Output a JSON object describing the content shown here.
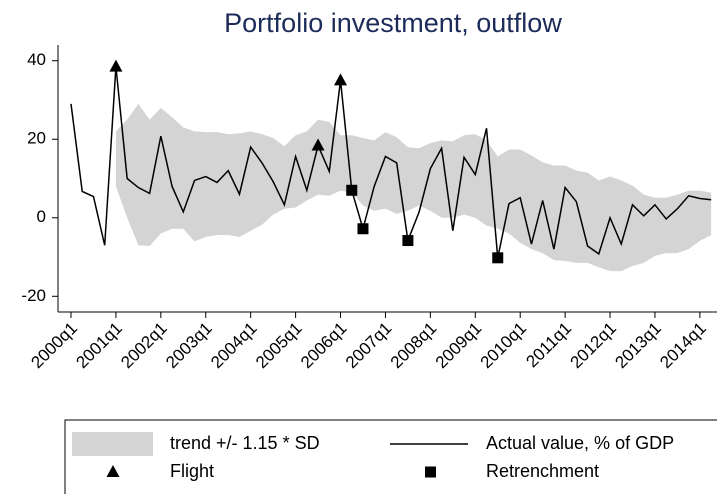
{
  "chart_data": {
    "type": "line",
    "title": "Portfolio investment, outflow",
    "categories": [
      "2000q1",
      null,
      null,
      null,
      "2001q1",
      null,
      null,
      null,
      "2002q1",
      null,
      null,
      null,
      "2003q1",
      null,
      null,
      null,
      "2004q1",
      null,
      null,
      null,
      "2005q1",
      null,
      null,
      null,
      "2006q1",
      null,
      null,
      null,
      "2007q1",
      null,
      null,
      null,
      "2008q1",
      null,
      null,
      null,
      "2009q1",
      null,
      null,
      null,
      "2010q1",
      null,
      null,
      null,
      "2011q1",
      null,
      null,
      null,
      "2012q1",
      null,
      null,
      null,
      "2013q1",
      null,
      null,
      null,
      "2014q1",
      null
    ],
    "ylim": [
      -24,
      44
    ],
    "yticks": [
      -20,
      0,
      20,
      40
    ],
    "series": [
      {
        "name": "trend +/- 1.15 * SD",
        "kind": "band",
        "color": "#d4d4d4",
        "lower": [
          null,
          null,
          null,
          null,
          8,
          0,
          -7,
          -7.2,
          -4,
          -2.8,
          -2.8,
          -6,
          -4.9,
          -4.4,
          -4.4,
          -4.9,
          -3.3,
          -1.8,
          0.8,
          2.3,
          2.6,
          4.4,
          5.9,
          5.6,
          6.9,
          6.4,
          3.1,
          1.8,
          2.3,
          1,
          1.8,
          3.1,
          1.8,
          0,
          0,
          0.8,
          0,
          -2,
          -2.8,
          -4,
          -6.4,
          -8,
          -9,
          -10.8,
          -11,
          -11.5,
          -11.5,
          -12.6,
          -13.6,
          -13.6,
          -12.3,
          -11.5,
          -9.7,
          -9,
          -9,
          -8,
          -5.9,
          -4.4
        ],
        "upper": [
          null,
          null,
          null,
          null,
          22,
          25,
          29,
          25,
          28,
          25.6,
          23,
          22,
          21.8,
          21.8,
          21.3,
          21.5,
          22,
          21.3,
          20.3,
          18.2,
          21,
          22,
          25,
          24.4,
          21,
          21,
          20.3,
          19.7,
          21.8,
          20.5,
          18,
          17.7,
          19,
          19.7,
          19.5,
          21,
          21.3,
          19.7,
          15.6,
          17.4,
          17.4,
          15.9,
          14.1,
          13.3,
          13.3,
          12,
          11.5,
          9.5,
          10.5,
          9.5,
          8.2,
          5.9,
          5.1,
          5.1,
          5.9,
          6.9,
          6.9,
          6.4
        ]
      },
      {
        "name": "Actual value, % of GDP",
        "kind": "line",
        "color": "#000000",
        "values": [
          29,
          6.7,
          5.4,
          -7,
          38.5,
          10,
          7.7,
          6.2,
          20.8,
          8,
          1.5,
          9.5,
          10.5,
          9,
          12,
          6,
          18,
          14,
          9.2,
          3.3,
          15.6,
          7,
          18.4,
          11.8,
          35,
          7,
          -2.8,
          8,
          15.6,
          14,
          -5.8,
          1.5,
          12.5,
          17.7,
          -3.3,
          15.4,
          11,
          22.8,
          -10.2,
          3.6,
          5.1,
          -6.7,
          4.4,
          -8,
          7.7,
          4.1,
          -7.2,
          -9.2,
          0,
          -6.7,
          3.3,
          0.5,
          3.3,
          -0.3,
          2.3,
          5.6,
          4.9,
          4.6
        ]
      },
      {
        "name": "Flight",
        "kind": "marker",
        "marker": "triangle",
        "color": "#000000",
        "values": [
          null,
          null,
          null,
          null,
          38.5,
          null,
          null,
          null,
          null,
          null,
          null,
          null,
          null,
          null,
          null,
          null,
          null,
          null,
          null,
          null,
          null,
          null,
          18.4,
          null,
          35,
          null,
          null,
          null,
          null,
          null,
          null,
          null,
          null,
          null,
          null,
          null,
          null,
          null,
          null,
          null,
          null,
          null,
          null,
          null,
          null,
          null,
          null,
          null,
          null,
          null,
          null,
          null,
          null,
          null,
          null,
          null,
          null,
          null
        ]
      },
      {
        "name": "Retrenchment",
        "kind": "marker",
        "marker": "square",
        "color": "#000000",
        "values": [
          null,
          null,
          null,
          null,
          null,
          null,
          null,
          null,
          null,
          null,
          null,
          null,
          null,
          null,
          null,
          null,
          null,
          null,
          null,
          null,
          null,
          null,
          null,
          null,
          null,
          7,
          -2.8,
          null,
          null,
          null,
          -5.8,
          null,
          null,
          null,
          null,
          null,
          null,
          null,
          -10.2,
          null,
          null,
          null,
          null,
          null,
          null,
          null,
          null,
          null,
          null,
          null,
          null,
          null,
          null,
          null,
          null,
          null,
          null,
          null
        ]
      }
    ]
  }
}
